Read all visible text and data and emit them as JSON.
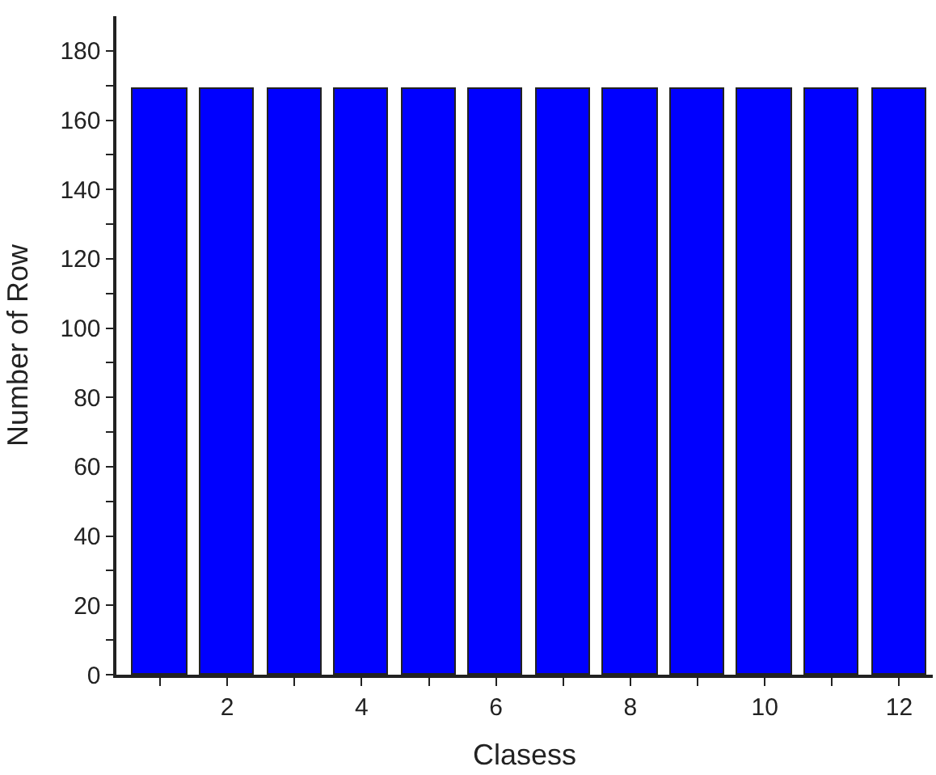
{
  "chart_data": {
    "type": "bar",
    "xlabel": "Clasess",
    "ylabel": "Number of Row",
    "x": [
      1,
      2,
      3,
      4,
      5,
      6,
      7,
      8,
      9,
      10,
      11,
      12
    ],
    "values": [
      169,
      169,
      169,
      169,
      169,
      169,
      169,
      169,
      169,
      169,
      169,
      169
    ],
    "color": "#0000ff",
    "xlim": [
      0.35,
      12.5
    ],
    "xticks": [
      {
        "value": 1,
        "label": null
      },
      2,
      {
        "value": 3,
        "label": null
      },
      4,
      {
        "value": 5,
        "label": null
      },
      6,
      {
        "value": 7,
        "label": null
      },
      8,
      {
        "value": 9,
        "label": null
      },
      10,
      {
        "value": 11,
        "label": null
      },
      12
    ],
    "ylim": [
      0,
      190
    ],
    "yticks": [
      0,
      {
        "value": 10,
        "label": null
      },
      20,
      {
        "value": 30,
        "label": null
      },
      40,
      {
        "value": 50,
        "label": null
      },
      60,
      {
        "value": 70,
        "label": null
      },
      80,
      {
        "value": 90,
        "label": null
      },
      100,
      {
        "value": 110,
        "label": null
      },
      120,
      {
        "value": 130,
        "label": null
      },
      140,
      {
        "value": 150,
        "label": null
      },
      160,
      {
        "value": 170,
        "label": null
      },
      180
    ]
  }
}
